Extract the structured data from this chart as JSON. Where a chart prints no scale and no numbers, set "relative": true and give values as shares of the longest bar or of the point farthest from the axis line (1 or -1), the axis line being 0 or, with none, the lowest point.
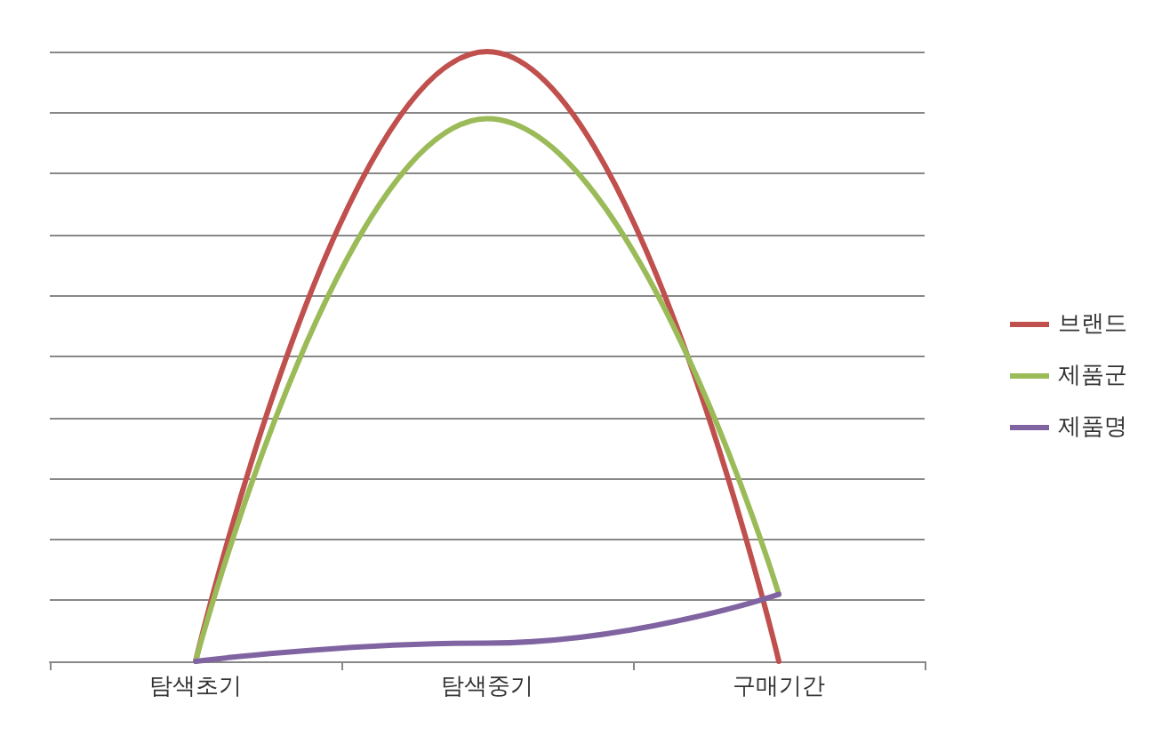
{
  "chart_data": {
    "type": "line",
    "relative": true,
    "categories": [
      "탐색초기",
      "탐색중기",
      "구매기간"
    ],
    "series": [
      {
        "name": "브랜드",
        "color": "#c0504d",
        "values": [
          0,
          1,
          0
        ]
      },
      {
        "name": "제품군",
        "color": "#9bbb59",
        "values": [
          0,
          0.89,
          0.11
        ]
      },
      {
        "name": "제품명",
        "color": "#8064a2",
        "values": [
          0,
          0.03,
          0.11
        ]
      }
    ],
    "grid": "y",
    "legend": "right",
    "marker": "none",
    "line_style": "solid"
  }
}
